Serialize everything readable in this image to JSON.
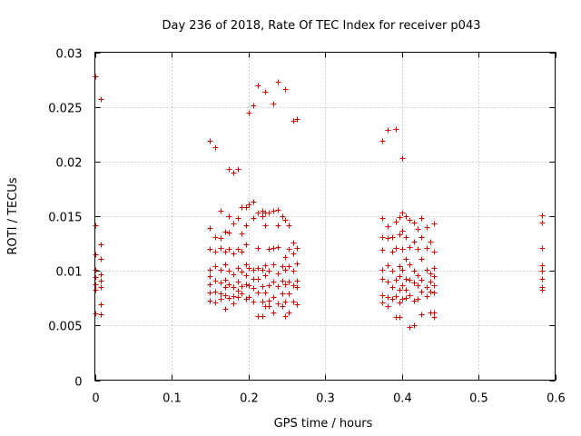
{
  "chart_data": {
    "type": "scatter",
    "title": "Day 236 of 2018, Rate Of TEC Index for receiver p043",
    "xlabel": "GPS time / hours",
    "ylabel": "ROTI / TECUs",
    "xlim": [
      0,
      0.6
    ],
    "ylim": [
      0,
      0.03
    ],
    "grid": true,
    "marker": "+",
    "color": "#d40000",
    "x_ticks": [
      0,
      0.1,
      0.2,
      0.3,
      0.4,
      0.5,
      0.6
    ],
    "x_tick_labels": [
      "0",
      "0.1",
      "0.2",
      "0.3",
      "0.4",
      "0.5",
      "0.6"
    ],
    "y_ticks": [
      0,
      0.005,
      0.01,
      0.015,
      0.02,
      0.025,
      0.03
    ],
    "y_tick_labels": [
      "0",
      "0.005",
      "0.01",
      "0.015",
      "0.02",
      "0.025",
      "0.03"
    ],
    "series": [
      {
        "name": "ROTI",
        "points": [
          [
            0.0,
            0.0278
          ],
          [
            0.0,
            0.0142
          ],
          [
            0.0,
            0.0115
          ],
          [
            0.0,
            0.0101
          ],
          [
            0.0,
            0.0094
          ],
          [
            0.0,
            0.0088
          ],
          [
            0.0,
            0.0083
          ],
          [
            0.0,
            0.0061
          ],
          [
            0.008,
            0.0257
          ],
          [
            0.008,
            0.0124
          ],
          [
            0.008,
            0.0111
          ],
          [
            0.008,
            0.0097
          ],
          [
            0.008,
            0.0091
          ],
          [
            0.008,
            0.0085
          ],
          [
            0.008,
            0.0069
          ],
          [
            0.008,
            0.006
          ],
          [
            0.15,
            0.0219
          ],
          [
            0.15,
            0.0139
          ],
          [
            0.15,
            0.012
          ],
          [
            0.15,
            0.0101
          ],
          [
            0.15,
            0.0095
          ],
          [
            0.15,
            0.0088
          ],
          [
            0.15,
            0.008
          ],
          [
            0.15,
            0.0073
          ],
          [
            0.157,
            0.0213
          ],
          [
            0.157,
            0.0131
          ],
          [
            0.157,
            0.0118
          ],
          [
            0.157,
            0.0104
          ],
          [
            0.157,
            0.0091
          ],
          [
            0.157,
            0.0081
          ],
          [
            0.157,
            0.0071
          ],
          [
            0.164,
            0.0155
          ],
          [
            0.164,
            0.013
          ],
          [
            0.164,
            0.0121
          ],
          [
            0.164,
            0.0101
          ],
          [
            0.164,
            0.0089
          ],
          [
            0.164,
            0.0079
          ],
          [
            0.164,
            0.0074
          ],
          [
            0.17,
            0.0136
          ],
          [
            0.17,
            0.0118
          ],
          [
            0.17,
            0.0106
          ],
          [
            0.17,
            0.0092
          ],
          [
            0.17,
            0.0085
          ],
          [
            0.17,
            0.0078
          ],
          [
            0.17,
            0.0065
          ],
          [
            0.175,
            0.0193
          ],
          [
            0.175,
            0.015
          ],
          [
            0.175,
            0.0135
          ],
          [
            0.175,
            0.012
          ],
          [
            0.175,
            0.01
          ],
          [
            0.175,
            0.0088
          ],
          [
            0.175,
            0.0075
          ],
          [
            0.18,
            0.019
          ],
          [
            0.18,
            0.0143
          ],
          [
            0.18,
            0.0116
          ],
          [
            0.18,
            0.0097
          ],
          [
            0.18,
            0.0085
          ],
          [
            0.18,
            0.0077
          ],
          [
            0.18,
            0.007
          ],
          [
            0.186,
            0.0193
          ],
          [
            0.186,
            0.0148
          ],
          [
            0.186,
            0.012
          ],
          [
            0.186,
            0.0103
          ],
          [
            0.186,
            0.009
          ],
          [
            0.186,
            0.0082
          ],
          [
            0.186,
            0.0076
          ],
          [
            0.191,
            0.0158
          ],
          [
            0.191,
            0.0134
          ],
          [
            0.191,
            0.0118
          ],
          [
            0.191,
            0.0099
          ],
          [
            0.191,
            0.0086
          ],
          [
            0.191,
            0.0079
          ],
          [
            0.197,
            0.0158
          ],
          [
            0.197,
            0.0142
          ],
          [
            0.197,
            0.0124
          ],
          [
            0.197,
            0.0106
          ],
          [
            0.197,
            0.0096
          ],
          [
            0.197,
            0.0088
          ],
          [
            0.197,
            0.0074
          ],
          [
            0.2,
            0.0245
          ],
          [
            0.2,
            0.0161
          ],
          [
            0.2,
            0.0103
          ],
          [
            0.2,
            0.0087
          ],
          [
            0.2,
            0.0076
          ],
          [
            0.207,
            0.0251
          ],
          [
            0.207,
            0.0163
          ],
          [
            0.207,
            0.0148
          ],
          [
            0.207,
            0.0101
          ],
          [
            0.207,
            0.0093
          ],
          [
            0.207,
            0.0084
          ],
          [
            0.207,
            0.0072
          ],
          [
            0.213,
            0.027
          ],
          [
            0.213,
            0.0153
          ],
          [
            0.213,
            0.0121
          ],
          [
            0.213,
            0.0103
          ],
          [
            0.213,
            0.0093
          ],
          [
            0.213,
            0.008
          ],
          [
            0.213,
            0.0059
          ],
          [
            0.218,
            0.0155
          ],
          [
            0.218,
            0.015
          ],
          [
            0.218,
            0.0101
          ],
          [
            0.218,
            0.0086
          ],
          [
            0.218,
            0.0072
          ],
          [
            0.218,
            0.0059
          ],
          [
            0.222,
            0.0264
          ],
          [
            0.222,
            0.0153
          ],
          [
            0.222,
            0.0142
          ],
          [
            0.222,
            0.0105
          ],
          [
            0.222,
            0.0096
          ],
          [
            0.222,
            0.008
          ],
          [
            0.222,
            0.0068
          ],
          [
            0.227,
            0.0153
          ],
          [
            0.227,
            0.012
          ],
          [
            0.227,
            0.01
          ],
          [
            0.227,
            0.0087
          ],
          [
            0.227,
            0.0073
          ],
          [
            0.227,
            0.0068
          ],
          [
            0.232,
            0.0253
          ],
          [
            0.232,
            0.0155
          ],
          [
            0.232,
            0.0121
          ],
          [
            0.232,
            0.0106
          ],
          [
            0.232,
            0.009
          ],
          [
            0.232,
            0.0076
          ],
          [
            0.232,
            0.0062
          ],
          [
            0.238,
            0.0273
          ],
          [
            0.238,
            0.0156
          ],
          [
            0.238,
            0.0142
          ],
          [
            0.238,
            0.0122
          ],
          [
            0.238,
            0.0098
          ],
          [
            0.238,
            0.0086
          ],
          [
            0.238,
            0.007
          ],
          [
            0.244,
            0.015
          ],
          [
            0.244,
            0.0104
          ],
          [
            0.244,
            0.0091
          ],
          [
            0.244,
            0.0079
          ],
          [
            0.244,
            0.0068
          ],
          [
            0.248,
            0.0266
          ],
          [
            0.248,
            0.0147
          ],
          [
            0.248,
            0.0113
          ],
          [
            0.248,
            0.0101
          ],
          [
            0.248,
            0.0088
          ],
          [
            0.248,
            0.0072
          ],
          [
            0.248,
            0.0059
          ],
          [
            0.253,
            0.0142
          ],
          [
            0.253,
            0.012
          ],
          [
            0.253,
            0.0104
          ],
          [
            0.253,
            0.009
          ],
          [
            0.253,
            0.0079
          ],
          [
            0.253,
            0.0062
          ],
          [
            0.258,
            0.0237
          ],
          [
            0.258,
            0.0126
          ],
          [
            0.258,
            0.0116
          ],
          [
            0.258,
            0.01
          ],
          [
            0.258,
            0.0087
          ],
          [
            0.258,
            0.0072
          ],
          [
            0.263,
            0.0239
          ],
          [
            0.263,
            0.0121
          ],
          [
            0.263,
            0.0107
          ],
          [
            0.263,
            0.0091
          ],
          [
            0.263,
            0.0085
          ],
          [
            0.263,
            0.0069
          ],
          [
            0.375,
            0.0219
          ],
          [
            0.375,
            0.0148
          ],
          [
            0.375,
            0.0131
          ],
          [
            0.375,
            0.0119
          ],
          [
            0.375,
            0.0101
          ],
          [
            0.375,
            0.0093
          ],
          [
            0.375,
            0.0078
          ],
          [
            0.375,
            0.0071
          ],
          [
            0.382,
            0.0229
          ],
          [
            0.382,
            0.0141
          ],
          [
            0.382,
            0.013
          ],
          [
            0.382,
            0.0105
          ],
          [
            0.382,
            0.009
          ],
          [
            0.382,
            0.0076
          ],
          [
            0.382,
            0.0068
          ],
          [
            0.388,
            0.0131
          ],
          [
            0.388,
            0.0118
          ],
          [
            0.388,
            0.01
          ],
          [
            0.388,
            0.0085
          ],
          [
            0.388,
            0.0074
          ],
          [
            0.392,
            0.023
          ],
          [
            0.392,
            0.0145
          ],
          [
            0.392,
            0.0121
          ],
          [
            0.392,
            0.0092
          ],
          [
            0.392,
            0.0077
          ],
          [
            0.392,
            0.0058
          ],
          [
            0.397,
            0.0149
          ],
          [
            0.397,
            0.0133
          ],
          [
            0.397,
            0.0104
          ],
          [
            0.397,
            0.0095
          ],
          [
            0.397,
            0.0083
          ],
          [
            0.397,
            0.0071
          ],
          [
            0.397,
            0.0058
          ],
          [
            0.4,
            0.0203
          ],
          [
            0.4,
            0.0153
          ],
          [
            0.4,
            0.0137
          ],
          [
            0.4,
            0.012
          ],
          [
            0.4,
            0.0101
          ],
          [
            0.4,
            0.0087
          ],
          [
            0.4,
            0.0074
          ],
          [
            0.405,
            0.015
          ],
          [
            0.405,
            0.0131
          ],
          [
            0.405,
            0.0111
          ],
          [
            0.405,
            0.0093
          ],
          [
            0.405,
            0.0083
          ],
          [
            0.405,
            0.0075
          ],
          [
            0.41,
            0.0147
          ],
          [
            0.41,
            0.0122
          ],
          [
            0.41,
            0.0106
          ],
          [
            0.41,
            0.0092
          ],
          [
            0.41,
            0.0078
          ],
          [
            0.41,
            0.0049
          ],
          [
            0.416,
            0.0144
          ],
          [
            0.416,
            0.0127
          ],
          [
            0.416,
            0.01
          ],
          [
            0.416,
            0.0089
          ],
          [
            0.416,
            0.0073
          ],
          [
            0.416,
            0.005
          ],
          [
            0.421,
            0.0138
          ],
          [
            0.421,
            0.012
          ],
          [
            0.421,
            0.0096
          ],
          [
            0.421,
            0.0087
          ],
          [
            0.421,
            0.0074
          ],
          [
            0.426,
            0.0148
          ],
          [
            0.426,
            0.0131
          ],
          [
            0.426,
            0.0111
          ],
          [
            0.426,
            0.0092
          ],
          [
            0.426,
            0.0081
          ],
          [
            0.426,
            0.006
          ],
          [
            0.432,
            0.014
          ],
          [
            0.432,
            0.0121
          ],
          [
            0.432,
            0.0101
          ],
          [
            0.432,
            0.0085
          ],
          [
            0.432,
            0.0077
          ],
          [
            0.437,
            0.0127
          ],
          [
            0.437,
            0.0098
          ],
          [
            0.437,
            0.009
          ],
          [
            0.437,
            0.0081
          ],
          [
            0.437,
            0.0062
          ],
          [
            0.442,
            0.0143
          ],
          [
            0.442,
            0.0118
          ],
          [
            0.442,
            0.0103
          ],
          [
            0.442,
            0.0095
          ],
          [
            0.442,
            0.0087
          ],
          [
            0.442,
            0.008
          ],
          [
            0.442,
            0.0062
          ],
          [
            0.442,
            0.0058
          ],
          [
            0.583,
            0.0151
          ],
          [
            0.583,
            0.0144
          ],
          [
            0.583,
            0.0121
          ],
          [
            0.583,
            0.0105
          ],
          [
            0.583,
            0.01
          ],
          [
            0.583,
            0.0093
          ],
          [
            0.583,
            0.0085
          ],
          [
            0.583,
            0.0083
          ]
        ]
      }
    ]
  }
}
